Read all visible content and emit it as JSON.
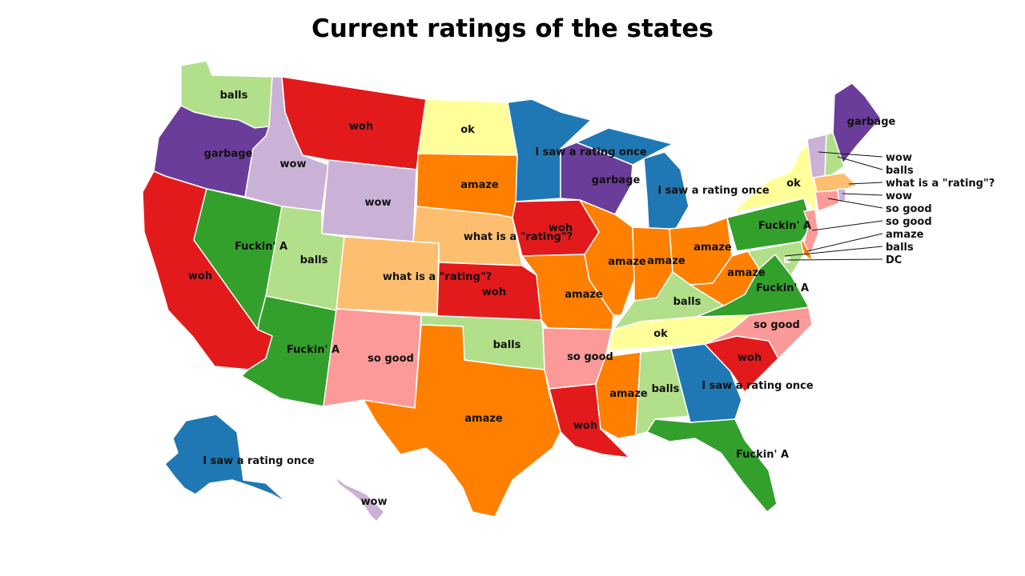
{
  "title": "Current ratings of the states",
  "colors": {
    "I saw a rating once": "#1f78b4",
    "garbage": "#6a3d9a",
    "wow": "#cab2d6",
    "balls": "#b2df8a",
    "Fuckin' A": "#33a02c",
    "woh": "#e31a1c",
    "so good": "#fb9a99",
    "amaze": "#ff7f00",
    "what is a \"rating\"?": "#fdbf6f",
    "ok": "#ffff99",
    "DC": "#dddddd"
  },
  "states": {
    "WA": "balls",
    "OR": "garbage",
    "CA": "woh",
    "NV": "Fuckin' A",
    "ID": "wow",
    "MT": "woh",
    "WY": "wow",
    "UT": "balls",
    "AZ": "Fuckin' A",
    "CO": "what is a \"rating\"?",
    "NM": "so good",
    "ND": "ok",
    "SD": "amaze",
    "NE": "what is a \"rating\"?",
    "KS": "woh",
    "OK": "balls",
    "TX": "amaze",
    "MN": "I saw a rating once",
    "IA": "woh",
    "MO": "amaze",
    "AR": "so good",
    "LA": "woh",
    "WI": "garbage",
    "IL": "amaze",
    "MI": "I saw a rating once",
    "IN": "amaze",
    "OH": "amaze",
    "KY": "balls",
    "TN": "ok",
    "MS": "amaze",
    "AL": "balls",
    "GA": "I saw a rating once",
    "FL": "Fuckin' A",
    "SC": "woh",
    "NC": "so good",
    "VA": "Fuckin' A",
    "WV": "amaze",
    "PA": "Fuckin' A",
    "NY": "ok",
    "ME": "garbage",
    "AK": "I saw a rating once",
    "HI": "wow",
    "VT": "wow",
    "NH": "balls",
    "MA": "what is a \"rating\"?",
    "RI": "wow",
    "CT": "so good",
    "NJ": "so good",
    "DE": "amaze",
    "MD": "balls",
    "DC": "DC"
  },
  "callouts": [
    "wow",
    "balls",
    "what is a \"rating\"?",
    "wow",
    "so good",
    "so good",
    "amaze",
    "balls",
    "DC"
  ]
}
